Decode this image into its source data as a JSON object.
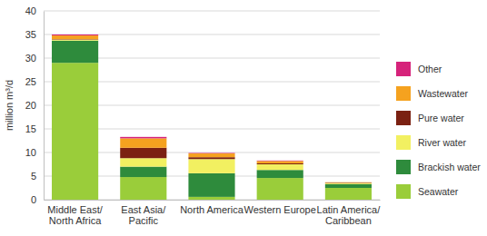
{
  "chart_data": {
    "type": "bar",
    "stacked": true,
    "grid": true,
    "legend": "right",
    "y_label": "million m³/d",
    "categories": [
      "Middle East/ North Africa",
      "East Asia/ Pacific",
      "North America",
      "Western Europe",
      "Latin America/ Caribbean"
    ],
    "series": [
      {
        "name": "Seawater",
        "color": "#9acd3a",
        "values": [
          29,
          4.8,
          0.6,
          4.6,
          2.5
        ]
      },
      {
        "name": "Brackish water",
        "color": "#2e8b3c",
        "values": [
          4.7,
          2.2,
          5,
          1.7,
          0.8
        ]
      },
      {
        "name": "River water",
        "color": "#f2f061",
        "values": [
          0.2,
          1.8,
          3,
          1.2,
          0.2
        ]
      },
      {
        "name": "Pure water",
        "color": "#7b2112",
        "values": [
          0.1,
          2.2,
          0.4,
          0.2,
          0.1
        ]
      },
      {
        "name": "Wastewater",
        "color": "#f5a21f",
        "values": [
          0.8,
          2,
          0.8,
          0.5,
          0.1
        ]
      },
      {
        "name": "Other",
        "color": "#d6237b",
        "values": [
          0.2,
          0.3,
          0.1,
          0.1,
          0
        ]
      }
    ],
    "ylim": [
      0,
      40
    ],
    "yticks": [
      0,
      5,
      10,
      15,
      20,
      25,
      30,
      35,
      40
    ]
  }
}
